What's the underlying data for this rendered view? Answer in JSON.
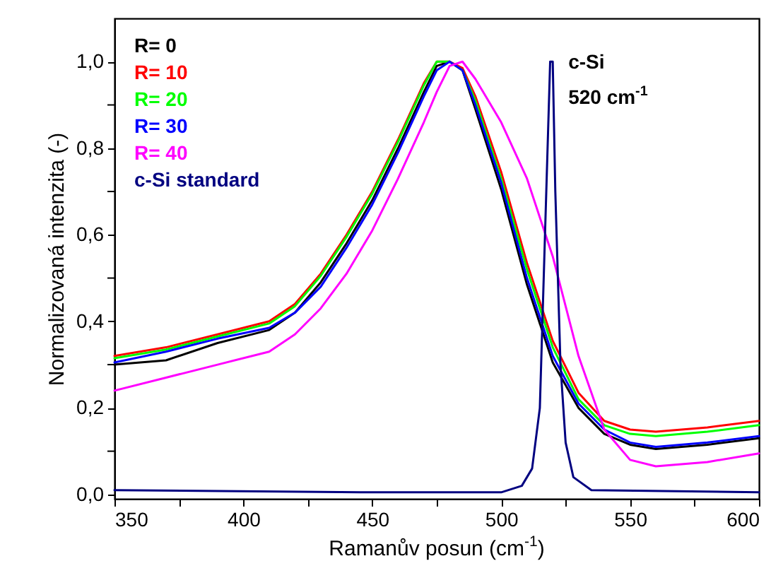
{
  "chart_data": {
    "type": "line",
    "xlabel": "Ramanův posun (cm$^{-1}$)",
    "ylabel": "Normalizovaná intenzita (-)",
    "xlim": [
      350,
      600
    ],
    "ylim": [
      -0.01,
      1.1
    ],
    "xticks": [
      350,
      {
        "value": 375,
        "label": null
      },
      400,
      {
        "value": 425,
        "label": null
      },
      450,
      {
        "value": 475,
        "label": null
      },
      500,
      {
        "value": 525,
        "label": null
      },
      550,
      {
        "value": 575,
        "label": null
      },
      600
    ],
    "yticks": [
      {
        "value": 0,
        "label": "0,0"
      },
      {
        "value": 0.1,
        "label": null
      },
      {
        "value": 0.2,
        "label": "0,2"
      },
      {
        "value": 0.3,
        "label": null
      },
      {
        "value": 0.4,
        "label": "0,4"
      },
      {
        "value": 0.5,
        "label": null
      },
      {
        "value": 0.6,
        "label": "0,6"
      },
      {
        "value": 0.7,
        "label": null
      },
      {
        "value": 0.8,
        "label": "0,8"
      },
      {
        "value": 0.9,
        "label": null
      },
      {
        "value": 1.0,
        "label": "1,0"
      }
    ],
    "grid": false,
    "legend": "top left",
    "x": [
      350,
      370,
      390,
      410,
      420,
      430,
      440,
      450,
      460,
      470,
      475,
      480,
      485,
      490,
      500,
      510,
      520,
      530,
      540,
      550,
      560,
      580,
      600
    ],
    "series": [
      {
        "name": "R=  0",
        "color": "#000000",
        "values": [
          0.3,
          0.31,
          0.35,
          0.38,
          0.42,
          0.49,
          0.58,
          0.68,
          0.8,
          0.93,
          0.99,
          1.0,
          0.98,
          0.89,
          0.705,
          0.485,
          0.305,
          0.2,
          0.14,
          0.115,
          0.105,
          0.115,
          0.13
        ]
      },
      {
        "name": "R= 10",
        "color": "#ff0000",
        "values": [
          0.32,
          0.34,
          0.37,
          0.4,
          0.44,
          0.51,
          0.6,
          0.7,
          0.82,
          0.95,
          1.0,
          1.0,
          0.985,
          0.92,
          0.745,
          0.535,
          0.355,
          0.235,
          0.17,
          0.15,
          0.145,
          0.155,
          0.17
        ]
      },
      {
        "name": "R= 20",
        "color": "#00ff00",
        "values": [
          0.315,
          0.335,
          0.365,
          0.395,
          0.435,
          0.505,
          0.595,
          0.695,
          0.815,
          0.945,
          1.0,
          1.0,
          0.98,
          0.91,
          0.73,
          0.52,
          0.34,
          0.22,
          0.16,
          0.14,
          0.135,
          0.145,
          0.16
        ]
      },
      {
        "name": "R= 30",
        "color": "#0000ff",
        "values": [
          0.305,
          0.33,
          0.36,
          0.385,
          0.42,
          0.48,
          0.57,
          0.67,
          0.79,
          0.92,
          0.98,
          1.0,
          0.98,
          0.9,
          0.72,
          0.5,
          0.32,
          0.21,
          0.15,
          0.12,
          0.11,
          0.12,
          0.135
        ]
      },
      {
        "name": "R= 40",
        "color": "#ff00ff",
        "values": [
          0.24,
          0.27,
          0.3,
          0.33,
          0.37,
          0.43,
          0.51,
          0.61,
          0.73,
          0.86,
          0.93,
          0.99,
          1.0,
          0.96,
          0.86,
          0.73,
          0.55,
          0.32,
          0.15,
          0.08,
          0.065,
          0.075,
          0.095
        ]
      },
      {
        "name": "c-Si standard",
        "color": "#000080",
        "x": [
          350,
          450,
          500,
          508,
          512,
          515,
          517,
          519,
          520,
          521,
          523,
          525,
          528,
          535,
          600
        ],
        "values": [
          0.01,
          0.005,
          0.005,
          0.02,
          0.06,
          0.2,
          0.6,
          1.0,
          1.0,
          0.7,
          0.3,
          0.12,
          0.04,
          0.01,
          0.005
        ]
      }
    ],
    "annotations": [
      {
        "text": "c-Si\n520 cm$^{-1}$",
        "x": 520,
        "y": 1.0
      }
    ]
  }
}
